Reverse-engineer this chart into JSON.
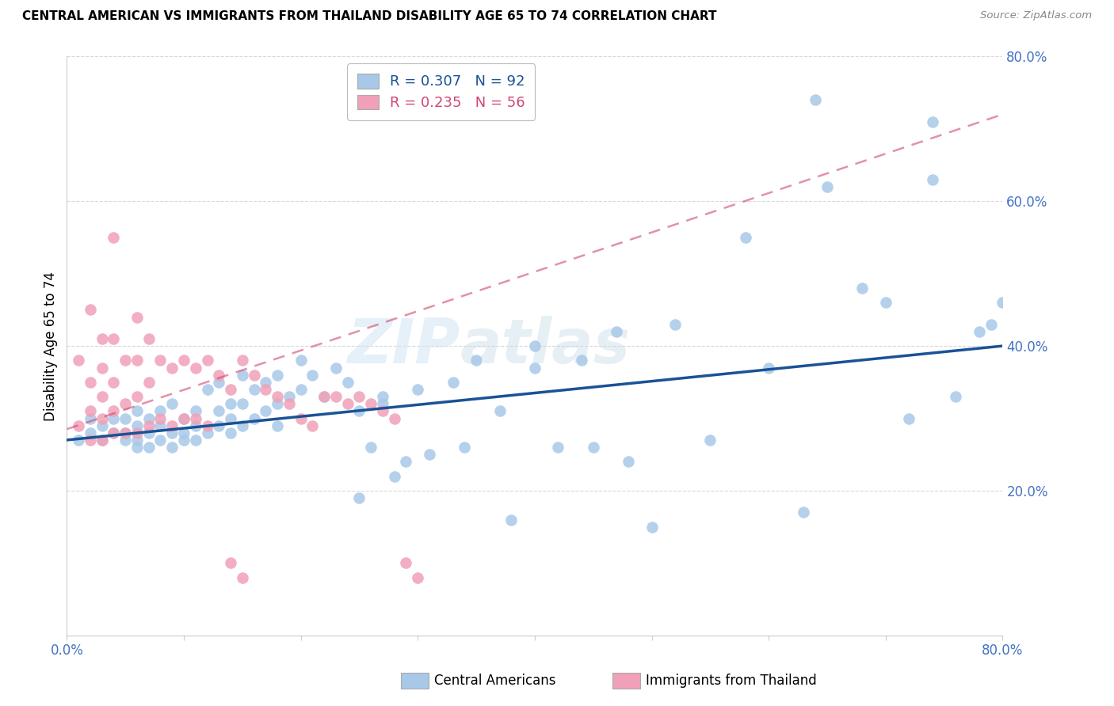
{
  "title": "CENTRAL AMERICAN VS IMMIGRANTS FROM THAILAND DISABILITY AGE 65 TO 74 CORRELATION CHART",
  "source": "Source: ZipAtlas.com",
  "ylabel": "Disability Age 65 to 74",
  "xmin": 0.0,
  "xmax": 0.8,
  "ymin": 0.0,
  "ymax": 0.8,
  "yticks": [
    0.2,
    0.4,
    0.6,
    0.8
  ],
  "ytick_labels": [
    "20.0%",
    "40.0%",
    "60.0%",
    "80.0%"
  ],
  "blue_R": 0.307,
  "blue_N": 92,
  "pink_R": 0.235,
  "pink_N": 56,
  "blue_color": "#a8c8e8",
  "blue_line_color": "#1a5296",
  "pink_color": "#f0a0b8",
  "pink_line_color": "#d04870",
  "watermark_zip": "ZIP",
  "watermark_atlas": "atlas",
  "grid_color": "#d8d8d8",
  "background_color": "#ffffff",
  "title_fontsize": 11,
  "tick_label_color": "#4472c4",
  "blue_scatter_x": [
    0.01,
    0.02,
    0.02,
    0.03,
    0.03,
    0.04,
    0.04,
    0.05,
    0.05,
    0.05,
    0.06,
    0.06,
    0.06,
    0.06,
    0.07,
    0.07,
    0.07,
    0.08,
    0.08,
    0.08,
    0.09,
    0.09,
    0.09,
    0.1,
    0.1,
    0.1,
    0.11,
    0.11,
    0.11,
    0.12,
    0.12,
    0.13,
    0.13,
    0.13,
    0.14,
    0.14,
    0.14,
    0.15,
    0.15,
    0.15,
    0.16,
    0.16,
    0.17,
    0.17,
    0.18,
    0.18,
    0.18,
    0.19,
    0.2,
    0.2,
    0.21,
    0.22,
    0.23,
    0.24,
    0.25,
    0.25,
    0.26,
    0.27,
    0.27,
    0.28,
    0.29,
    0.3,
    0.31,
    0.33,
    0.34,
    0.35,
    0.37,
    0.38,
    0.4,
    0.4,
    0.42,
    0.44,
    0.45,
    0.47,
    0.48,
    0.5,
    0.52,
    0.55,
    0.58,
    0.6,
    0.63,
    0.65,
    0.68,
    0.7,
    0.72,
    0.74,
    0.76,
    0.78,
    0.79,
    0.8,
    0.64,
    0.74
  ],
  "blue_scatter_y": [
    0.27,
    0.28,
    0.3,
    0.27,
    0.29,
    0.28,
    0.3,
    0.27,
    0.28,
    0.3,
    0.26,
    0.27,
    0.29,
    0.31,
    0.26,
    0.28,
    0.3,
    0.27,
    0.29,
    0.31,
    0.26,
    0.28,
    0.32,
    0.27,
    0.28,
    0.3,
    0.27,
    0.29,
    0.31,
    0.28,
    0.34,
    0.29,
    0.31,
    0.35,
    0.28,
    0.3,
    0.32,
    0.29,
    0.32,
    0.36,
    0.3,
    0.34,
    0.31,
    0.35,
    0.29,
    0.32,
    0.36,
    0.33,
    0.34,
    0.38,
    0.36,
    0.33,
    0.37,
    0.35,
    0.19,
    0.31,
    0.26,
    0.32,
    0.33,
    0.22,
    0.24,
    0.34,
    0.25,
    0.35,
    0.26,
    0.38,
    0.31,
    0.16,
    0.4,
    0.37,
    0.26,
    0.38,
    0.26,
    0.42,
    0.24,
    0.15,
    0.43,
    0.27,
    0.55,
    0.37,
    0.17,
    0.62,
    0.48,
    0.46,
    0.3,
    0.71,
    0.33,
    0.42,
    0.43,
    0.46,
    0.74,
    0.63
  ],
  "pink_scatter_x": [
    0.01,
    0.01,
    0.02,
    0.02,
    0.02,
    0.02,
    0.03,
    0.03,
    0.03,
    0.03,
    0.03,
    0.04,
    0.04,
    0.04,
    0.04,
    0.04,
    0.05,
    0.05,
    0.05,
    0.06,
    0.06,
    0.06,
    0.06,
    0.07,
    0.07,
    0.07,
    0.08,
    0.08,
    0.09,
    0.09,
    0.1,
    0.1,
    0.11,
    0.11,
    0.12,
    0.12,
    0.13,
    0.14,
    0.14,
    0.15,
    0.15,
    0.16,
    0.17,
    0.18,
    0.19,
    0.2,
    0.21,
    0.22,
    0.23,
    0.24,
    0.25,
    0.26,
    0.27,
    0.28,
    0.29,
    0.3
  ],
  "pink_scatter_y": [
    0.29,
    0.38,
    0.27,
    0.31,
    0.35,
    0.45,
    0.27,
    0.3,
    0.33,
    0.37,
    0.41,
    0.28,
    0.31,
    0.35,
    0.41,
    0.55,
    0.28,
    0.32,
    0.38,
    0.28,
    0.33,
    0.38,
    0.44,
    0.29,
    0.35,
    0.41,
    0.3,
    0.38,
    0.29,
    0.37,
    0.3,
    0.38,
    0.3,
    0.37,
    0.29,
    0.38,
    0.36,
    0.1,
    0.34,
    0.08,
    0.38,
    0.36,
    0.34,
    0.33,
    0.32,
    0.3,
    0.29,
    0.33,
    0.33,
    0.32,
    0.33,
    0.32,
    0.31,
    0.3,
    0.1,
    0.08
  ],
  "blue_trend_x0": 0.0,
  "blue_trend_y0": 0.27,
  "blue_trend_x1": 0.8,
  "blue_trend_y1": 0.4,
  "pink_trend_x0": 0.0,
  "pink_trend_y0": 0.285,
  "pink_trend_x1": 0.8,
  "pink_trend_y1": 0.72
}
